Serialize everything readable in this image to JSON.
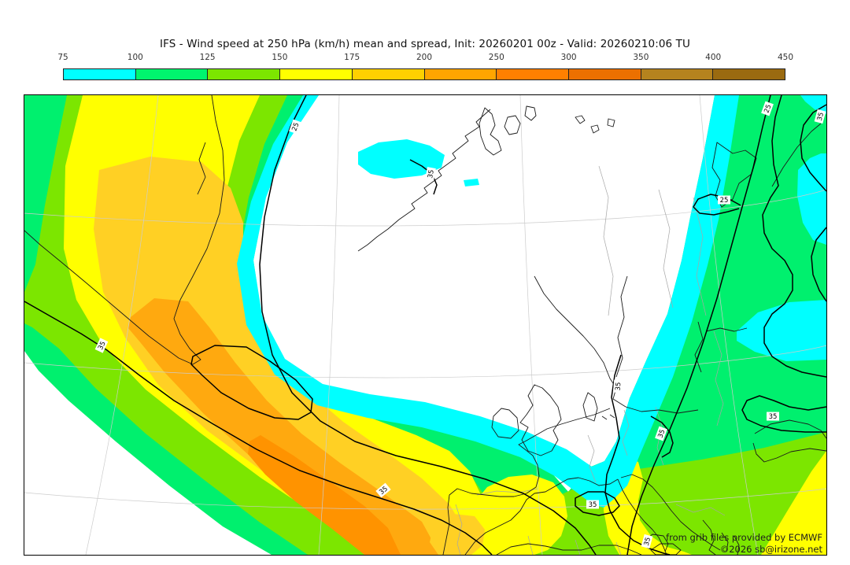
{
  "title": "IFS - Wind speed at 250 hPa (km/h) mean and spread, Init: 20260201 00z - Valid: 20260210:06 TU",
  "colorbar": {
    "unit": "km/h",
    "ticks": [
      "75",
      "100",
      "125",
      "150",
      "175",
      "200",
      "250",
      "300",
      "350",
      "400",
      "450"
    ],
    "segments": [
      {
        "range": "75-100",
        "color": "#00ffff"
      },
      {
        "range": "100-125",
        "color": "#00f56e"
      },
      {
        "range": "125-150",
        "color": "#7ce600"
      },
      {
        "range": "150-175",
        "color": "#ffff00"
      },
      {
        "range": "175-200",
        "color": "#ffd000"
      },
      {
        "range": "200-250",
        "color": "#ffa500"
      },
      {
        "range": "250-300",
        "color": "#ff8000"
      },
      {
        "range": "300-350",
        "color": "#ec7000"
      },
      {
        "range": "350-400",
        "color": "#b5831e"
      },
      {
        "range": "400-450",
        "color": "#9a6a10"
      }
    ]
  },
  "map": {
    "palette": {
      "below75": "#ffffff",
      "band75": "#00ffff",
      "band100": "#00f06e",
      "band125": "#7ce600",
      "band150": "#ffff00",
      "band175": "#ffd024",
      "band200": "#ffa90f",
      "band250": "#ff9300",
      "coast": "#1a1a1a",
      "border": "#a6a6a6",
      "graticule": "#cccccc",
      "contour": "#000000",
      "label_box": "#ffffff"
    },
    "contour_labels": [
      {
        "text": "25"
      },
      {
        "text": "25"
      },
      {
        "text": "35"
      },
      {
        "text": "35"
      },
      {
        "text": "35"
      },
      {
        "text": "35"
      },
      {
        "text": "35"
      },
      {
        "text": "35"
      },
      {
        "text": "35"
      },
      {
        "text": "35"
      },
      {
        "text": "25"
      },
      {
        "text": "35"
      }
    ],
    "attribution_line1": "from grib files provided by ECMWF",
    "attribution_line2": "©2026 sb@irizone.net"
  },
  "chart_data": {
    "type": "filled_contour_map",
    "title": "IFS - Wind speed at 250 hPa (km/h) mean and spread",
    "model": "IFS",
    "variable": "Wind speed at 250 hPa",
    "unit": "km/h",
    "statistic": "ensemble mean (color shading) and ensemble spread (black contours)",
    "init": "20260201 00z",
    "valid": "20260210:06 TU",
    "levels": [
      75,
      100,
      125,
      150,
      175,
      200,
      250,
      300,
      350,
      400,
      450
    ],
    "level_colors": [
      "#00ffff",
      "#00f56e",
      "#7ce600",
      "#ffff00",
      "#ffd000",
      "#ffa500",
      "#ff8000",
      "#ec7000",
      "#b5831e",
      "#9a6a10"
    ],
    "spread_contour_values_shown": [
      25,
      35
    ],
    "region": "North Atlantic / Greenland / Europe",
    "depicted_features": [
      "strong jet band sweeping from the NW Atlantic near Greenland southeastward to Iberia and the western Mediterranean, mean speeds up to 200-300 km/h",
      "calm region below 75 km/h over Scandinavia, the UK and central Europe",
      "secondary 75-150 km/h band over eastern Europe and western Russia",
      "small 75-100 km/h patch along the Norwegian coast",
      "150-200 km/h patches over Iberia, Italy and the Black Sea corner"
    ]
  }
}
